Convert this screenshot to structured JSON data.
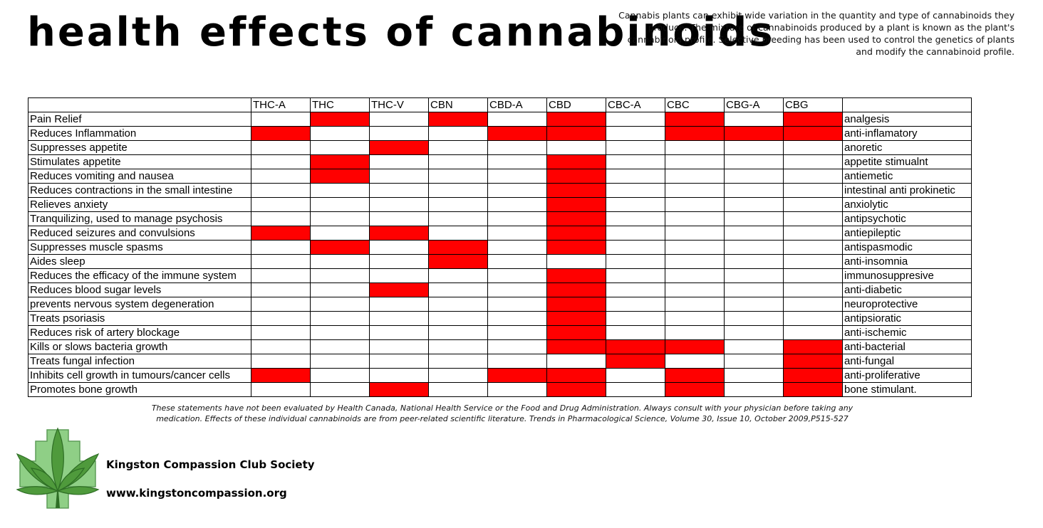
{
  "header": {
    "title": "health effects of cannabinoids",
    "intro": "Cannabis plants can exhibit wide variation in the quantity and type of cannabinoids they produce. The mixture of cannabinoids produced by a plant is known as the plant's cannabinoid profile. Selective breeding has been used to control the genetics of plants and modify the cannabinoid profile."
  },
  "table": {
    "columns": [
      "THC-A",
      "THC",
      "THC-V",
      "CBN",
      "CBD-A",
      "CBD",
      "CBC-A",
      "CBC",
      "CBG-A",
      "CBG"
    ],
    "highlight_color": "#ff0000",
    "rows": [
      {
        "effect": "Pain Relief",
        "term": "analgesis",
        "marks": [
          0,
          1,
          0,
          1,
          0,
          1,
          0,
          1,
          0,
          1
        ]
      },
      {
        "effect": "Reduces Inflammation",
        "term": "anti-inflamatory",
        "marks": [
          1,
          0,
          0,
          0,
          1,
          1,
          0,
          1,
          1,
          1
        ]
      },
      {
        "effect": "Suppresses appetite",
        "term": "anoretic",
        "marks": [
          0,
          0,
          1,
          0,
          0,
          0,
          0,
          0,
          0,
          0
        ]
      },
      {
        "effect": "Stimulates appetite",
        "term": "appetite stimualnt",
        "marks": [
          0,
          1,
          0,
          0,
          0,
          1,
          0,
          0,
          0,
          0
        ]
      },
      {
        "effect": "Reduces vomiting and nausea",
        "term": "antiemetic",
        "marks": [
          0,
          1,
          0,
          0,
          0,
          1,
          0,
          0,
          0,
          0
        ]
      },
      {
        "effect": "Reduces contractions in the small intestine",
        "term": "intestinal anti prokinetic",
        "marks": [
          0,
          0,
          0,
          0,
          0,
          1,
          0,
          0,
          0,
          0
        ]
      },
      {
        "effect": "Relieves anxiety",
        "term": "anxiolytic",
        "marks": [
          0,
          0,
          0,
          0,
          0,
          1,
          0,
          0,
          0,
          0
        ]
      },
      {
        "effect": "Tranquilizing, used to manage psychosis",
        "term": "antipsychotic",
        "marks": [
          0,
          0,
          0,
          0,
          0,
          1,
          0,
          0,
          0,
          0
        ]
      },
      {
        "effect": "Reduced seizures and convulsions",
        "term": "antiepileptic",
        "marks": [
          1,
          0,
          1,
          0,
          0,
          1,
          0,
          0,
          0,
          0
        ]
      },
      {
        "effect": "Suppresses muscle spasms",
        "term": "antispasmodic",
        "marks": [
          0,
          1,
          0,
          1,
          0,
          1,
          0,
          0,
          0,
          0
        ]
      },
      {
        "effect": "Aides sleep",
        "term": "anti-insomnia",
        "marks": [
          0,
          0,
          0,
          1,
          0,
          0,
          0,
          0,
          0,
          0
        ]
      },
      {
        "effect": "Reduces the efficacy of the immune system",
        "term": "immunosuppresive",
        "marks": [
          0,
          0,
          0,
          0,
          0,
          1,
          0,
          0,
          0,
          0
        ]
      },
      {
        "effect": "Reduces blood sugar levels",
        "term": "anti-diabetic",
        "marks": [
          0,
          0,
          1,
          0,
          0,
          1,
          0,
          0,
          0,
          0
        ]
      },
      {
        "effect": "prevents nervous system degeneration",
        "term": "neuroprotective",
        "marks": [
          0,
          0,
          0,
          0,
          0,
          1,
          0,
          0,
          0,
          0
        ]
      },
      {
        "effect": "Treats psoriasis",
        "term": "antipsioratic",
        "marks": [
          0,
          0,
          0,
          0,
          0,
          1,
          0,
          0,
          0,
          0
        ]
      },
      {
        "effect": "Reduces risk of artery blockage",
        "term": "anti-ischemic",
        "marks": [
          0,
          0,
          0,
          0,
          0,
          1,
          0,
          0,
          0,
          0
        ]
      },
      {
        "effect": "Kills or slows bacteria growth",
        "term": "anti-bacterial",
        "marks": [
          0,
          0,
          0,
          0,
          0,
          1,
          1,
          1,
          0,
          1
        ]
      },
      {
        "effect": "Treats fungal infection",
        "term": "anti-fungal",
        "marks": [
          0,
          0,
          0,
          0,
          0,
          0,
          1,
          0,
          0,
          1
        ]
      },
      {
        "effect": "Inhibits cell growth in tumours/cancer cells",
        "term": "anti-proliferative",
        "marks": [
          1,
          0,
          0,
          0,
          1,
          1,
          0,
          1,
          0,
          1
        ]
      },
      {
        "effect": "Promotes bone growth",
        "term": "bone stimulant.",
        "marks": [
          0,
          0,
          1,
          0,
          0,
          1,
          0,
          1,
          0,
          1
        ]
      }
    ]
  },
  "footer": {
    "disclaimer": "These statements have not been evaluated by Health Canada, National Health Service or the Food and Drug Administration. Always consult with your physician before taking any medication. Effects of these individual cannabinoids are from peer-related scientific literature. Trends in Pharmacological Science, Volume 30, Issue 10, October 2009,P515-527",
    "logo_icon": "cannabis-leaf-icon",
    "org_name": "Kingston Compassion Club Society",
    "url": "www.kingstoncompassion.org"
  }
}
